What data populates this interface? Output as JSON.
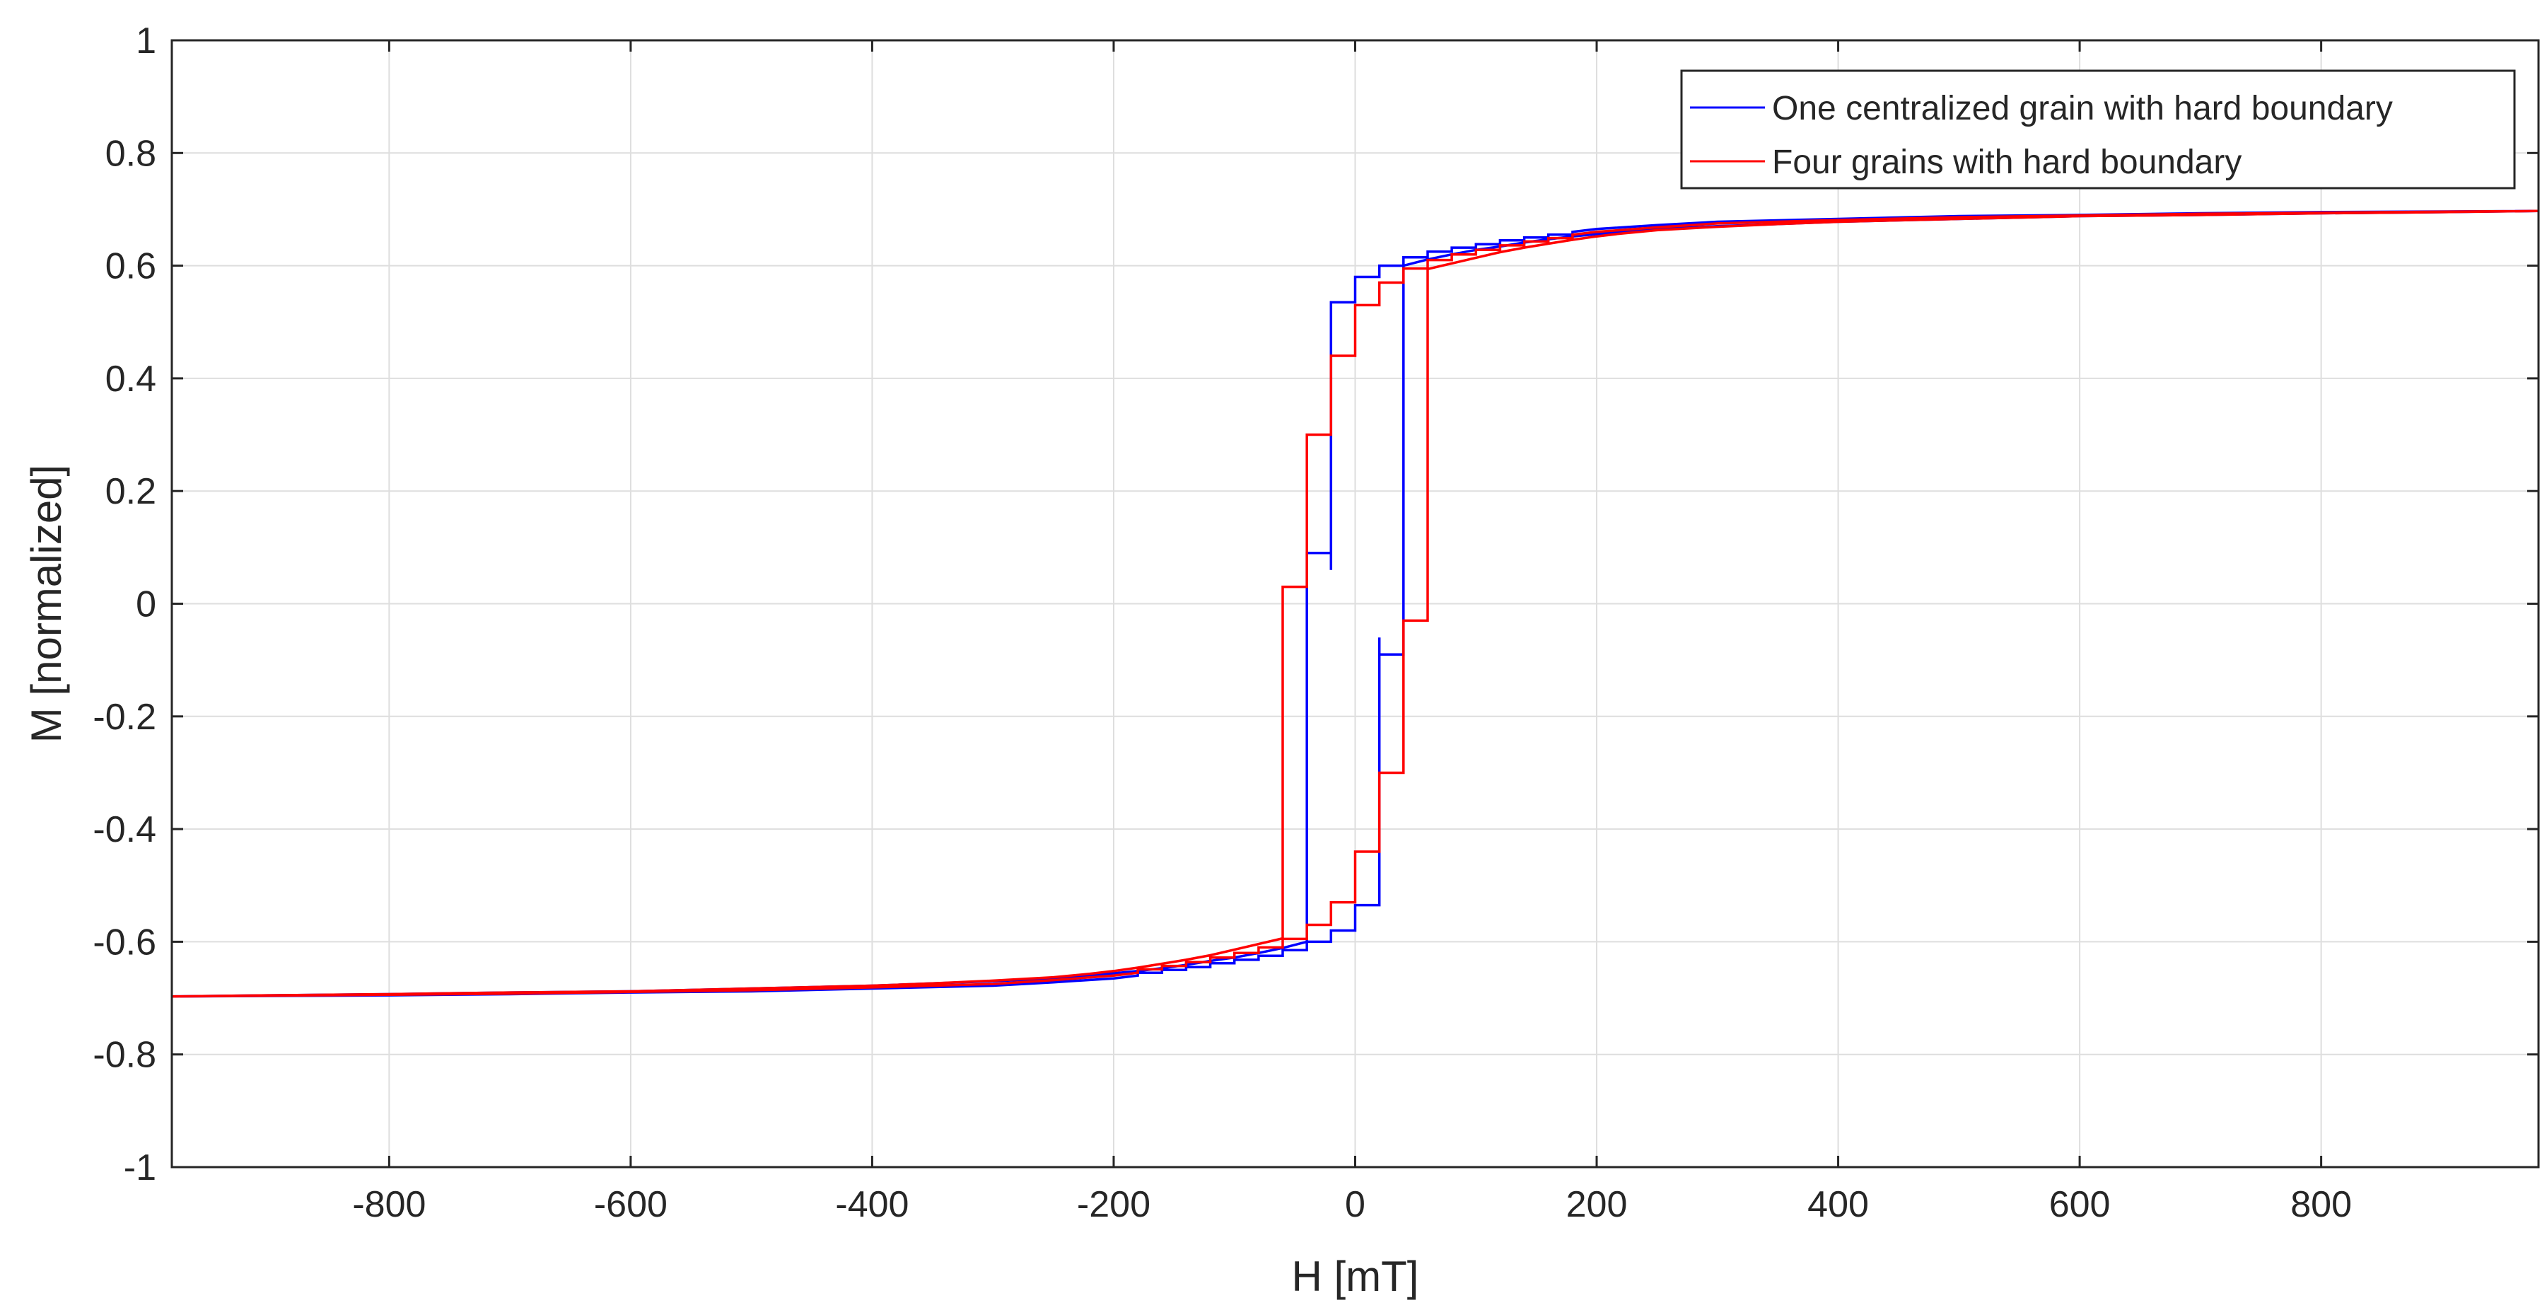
{
  "chart_data": {
    "type": "line",
    "title": "",
    "xlabel": "H [mT]",
    "ylabel": "M [normalized]",
    "xlim": [
      -980,
      980
    ],
    "ylim": [
      -1,
      1
    ],
    "xticks": [
      -800,
      -600,
      -400,
      -200,
      0,
      200,
      400,
      600,
      800
    ],
    "xtick_labels": [
      "-800",
      "-600",
      "-400",
      "-200",
      "0",
      "200",
      "400",
      "600",
      "800"
    ],
    "yticks": [
      -1,
      -0.8,
      -0.6,
      -0.4,
      -0.2,
      0,
      0.2,
      0.4,
      0.6,
      0.8,
      1
    ],
    "ytick_labels": [
      "-1",
      "-0.8",
      "-0.6",
      "-0.4",
      "-0.2",
      "0",
      "0.2",
      "0.4",
      "0.6",
      "0.8",
      "1"
    ],
    "grid": true,
    "legend_position": "top-right",
    "series": [
      {
        "name": "One centralized grain with hard boundary",
        "color": "#0000ff",
        "x": [
          -980,
          -900,
          -800,
          -700,
          -600,
          -500,
          -400,
          -350,
          -300,
          -250,
          -220,
          -200,
          -180,
          -160,
          -140,
          -120,
          -100,
          -80,
          -60,
          -40,
          -40,
          -20,
          -20,
          -20,
          0,
          0,
          20,
          20,
          40,
          40,
          60,
          60,
          80,
          80,
          100,
          100,
          120,
          120,
          140,
          140,
          160,
          160,
          180,
          180,
          200,
          250,
          300,
          400,
          500,
          600,
          700,
          800,
          980,
          980,
          900,
          800,
          700,
          600,
          500,
          400,
          350,
          300,
          250,
          220,
          200,
          180,
          160,
          140,
          120,
          100,
          80,
          60,
          40,
          40,
          20,
          20,
          20,
          0,
          0,
          -20,
          -20,
          -40,
          -40,
          -60,
          -60,
          -80,
          -80,
          -100,
          -100,
          -120,
          -120,
          -140,
          -140,
          -160,
          -160,
          -180,
          -180,
          -200,
          -250,
          -300,
          -400,
          -500,
          -600,
          -700,
          -800,
          -980
        ],
        "y": [
          -0.697,
          -0.695,
          -0.693,
          -0.69,
          -0.688,
          -0.683,
          -0.678,
          -0.674,
          -0.67,
          -0.665,
          -0.66,
          -0.656,
          -0.652,
          -0.647,
          -0.641,
          -0.634,
          -0.628,
          -0.62,
          -0.611,
          -0.6,
          0.09,
          0.09,
          0.06,
          0.535,
          0.535,
          0.58,
          0.58,
          0.6,
          0.6,
          0.615,
          0.615,
          0.625,
          0.625,
          0.632,
          0.632,
          0.638,
          0.638,
          0.645,
          0.645,
          0.65,
          0.65,
          0.655,
          0.655,
          0.66,
          0.665,
          0.672,
          0.678,
          0.683,
          0.688,
          0.69,
          0.693,
          0.695,
          0.697,
          0.697,
          0.695,
          0.693,
          0.69,
          0.688,
          0.683,
          0.678,
          0.674,
          0.67,
          0.665,
          0.66,
          0.656,
          0.652,
          0.647,
          0.641,
          0.634,
          0.628,
          0.62,
          0.611,
          0.6,
          -0.09,
          -0.09,
          -0.06,
          -0.535,
          -0.535,
          -0.58,
          -0.58,
          -0.6,
          -0.6,
          -0.615,
          -0.615,
          -0.625,
          -0.625,
          -0.632,
          -0.632,
          -0.638,
          -0.638,
          -0.645,
          -0.645,
          -0.65,
          -0.65,
          -0.655,
          -0.655,
          -0.66,
          -0.665,
          -0.672,
          -0.678,
          -0.683,
          -0.688,
          -0.69,
          -0.693,
          -0.695,
          -0.697
        ]
      },
      {
        "name": "Four grains with hard boundary",
        "color": "#ff0000",
        "x": [
          -980,
          -900,
          -800,
          -700,
          -600,
          -500,
          -400,
          -350,
          -300,
          -250,
          -220,
          -200,
          -180,
          -160,
          -140,
          -120,
          -100,
          -80,
          -60,
          -60,
          -40,
          -40,
          -20,
          -20,
          0,
          0,
          20,
          20,
          40,
          40,
          60,
          60,
          80,
          80,
          100,
          100,
          120,
          120,
          140,
          140,
          160,
          160,
          180,
          180,
          200,
          250,
          300,
          400,
          500,
          600,
          700,
          800,
          980,
          980,
          900,
          800,
          700,
          600,
          500,
          400,
          350,
          300,
          250,
          220,
          200,
          180,
          160,
          140,
          120,
          100,
          80,
          60,
          60,
          40,
          40,
          20,
          20,
          0,
          0,
          -20,
          -20,
          -40,
          -40,
          -60,
          -60,
          -80,
          -80,
          -100,
          -100,
          -120,
          -120,
          -140,
          -140,
          -160,
          -160,
          -180,
          -180,
          -200,
          -250,
          -300,
          -400,
          -500,
          -600,
          -700,
          -800,
          -980
        ],
        "y": [
          -0.697,
          -0.695,
          -0.693,
          -0.69,
          -0.688,
          -0.683,
          -0.678,
          -0.674,
          -0.669,
          -0.663,
          -0.657,
          -0.652,
          -0.646,
          -0.639,
          -0.632,
          -0.624,
          -0.614,
          -0.604,
          -0.594,
          0.03,
          0.03,
          0.3,
          0.3,
          0.44,
          0.44,
          0.53,
          0.53,
          0.57,
          0.57,
          0.595,
          0.595,
          0.61,
          0.61,
          0.62,
          0.62,
          0.628,
          0.628,
          0.636,
          0.636,
          0.643,
          0.643,
          0.649,
          0.649,
          0.655,
          0.66,
          0.668,
          0.675,
          0.681,
          0.686,
          0.689,
          0.692,
          0.694,
          0.697,
          0.697,
          0.695,
          0.693,
          0.69,
          0.688,
          0.683,
          0.678,
          0.674,
          0.669,
          0.663,
          0.657,
          0.652,
          0.646,
          0.639,
          0.632,
          0.624,
          0.614,
          0.604,
          0.594,
          -0.03,
          -0.03,
          -0.3,
          -0.3,
          -0.44,
          -0.44,
          -0.53,
          -0.53,
          -0.57,
          -0.57,
          -0.595,
          -0.595,
          -0.61,
          -0.61,
          -0.62,
          -0.62,
          -0.628,
          -0.628,
          -0.636,
          -0.636,
          -0.643,
          -0.643,
          -0.649,
          -0.649,
          -0.655,
          -0.66,
          -0.668,
          -0.675,
          -0.681,
          -0.686,
          -0.689,
          -0.692,
          -0.694,
          -0.697
        ]
      }
    ]
  }
}
